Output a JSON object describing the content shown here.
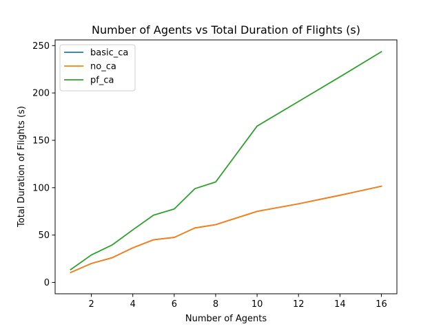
{
  "chart_data": {
    "type": "line",
    "title": "Number of Agents vs Total Duration of Flights (s)",
    "xlabel": "Number of Agents",
    "ylabel": "Total Duration of Flights (s)",
    "x": [
      1,
      2,
      3,
      4,
      5,
      6,
      7,
      8,
      10,
      12,
      14,
      16
    ],
    "xlim": [
      0.25,
      16.75
    ],
    "ylim": [
      -12,
      256
    ],
    "xticks": [
      2,
      4,
      6,
      8,
      10,
      12,
      14,
      16
    ],
    "yticks": [
      0,
      50,
      100,
      150,
      200,
      250
    ],
    "grid": false,
    "legend_position": "upper-left",
    "series": [
      {
        "name": "basic_ca",
        "color": "#1f77b4",
        "values": [
          10.5,
          20,
          26,
          36.5,
          45,
          47.5,
          57.5,
          61,
          75,
          83,
          92,
          101.5
        ]
      },
      {
        "name": "no_ca",
        "color": "#ff7f0e",
        "values": [
          10.5,
          20,
          26,
          36.5,
          45,
          47.5,
          57.5,
          61,
          75,
          83,
          92,
          101.5
        ]
      },
      {
        "name": "pf_ca",
        "color": "#2ca02c",
        "values": [
          13.5,
          29,
          39.5,
          55.5,
          71,
          77.5,
          99,
          106,
          165,
          191,
          217,
          243.5
        ]
      }
    ]
  }
}
